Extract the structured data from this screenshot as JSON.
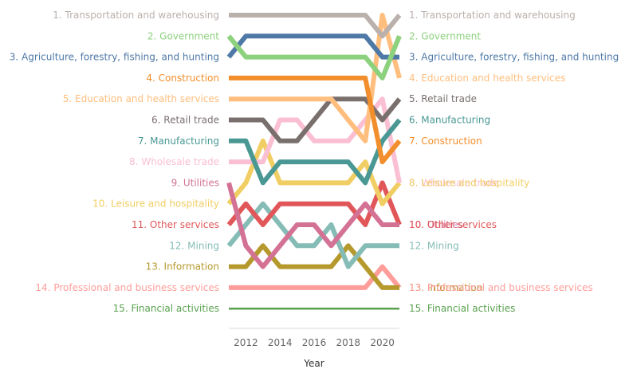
{
  "chart_data": {
    "type": "line",
    "title": "",
    "xlabel": "Year",
    "ylabel": "",
    "x": [
      2011,
      2012,
      2013,
      2014,
      2015,
      2016,
      2017,
      2018,
      2019,
      2020,
      2021
    ],
    "xlim": [
      2011,
      2021
    ],
    "ylim": [
      1,
      15
    ],
    "y_reversed": true,
    "x_ticks": [
      "2012",
      "2014",
      "2016",
      "2018",
      "2020"
    ],
    "grid": false,
    "legend": "none",
    "series": [
      {
        "name": "Transportation and warehousing",
        "color": "#bab0ac",
        "start_label": "1. Transportation and warehousing",
        "end_label": "1. Transportation and warehousing",
        "values": [
          1,
          1,
          1,
          1,
          1,
          1,
          1,
          1,
          1,
          2,
          1
        ]
      },
      {
        "name": "Government",
        "color": "#8cd17d",
        "start_label": "2. Government",
        "end_label": "2. Government",
        "values": [
          2,
          3,
          3,
          3,
          3,
          3,
          3,
          3,
          3,
          4,
          2
        ]
      },
      {
        "name": "Agriculture, forestry, fishing, and hunting",
        "color": "#4e79a7",
        "start_label": "3. Agriculture, forestry, fishing, and hunting",
        "end_label": "3. Agriculture, forestry, fishing, and hunting",
        "values": [
          3,
          2,
          2,
          2,
          2,
          2,
          2,
          2,
          2,
          3,
          3
        ]
      },
      {
        "name": "Construction",
        "color": "#f28e2b",
        "start_label": "4. Construction",
        "end_label": "7. Construction",
        "values": [
          4,
          4,
          4,
          4,
          4,
          4,
          4,
          4,
          4,
          8,
          7
        ]
      },
      {
        "name": "Education and health services",
        "color": "#ffbe7d",
        "start_label": "5. Education and health services",
        "end_label": "4. Education and health services",
        "values": [
          5,
          5,
          5,
          5,
          5,
          5,
          5,
          6,
          7,
          1,
          4
        ]
      },
      {
        "name": "Retail trade",
        "color": "#79706e",
        "start_label": "6. Retail trade",
        "end_label": "5. Retail trade",
        "values": [
          6,
          6,
          6,
          7,
          7,
          6,
          5,
          5,
          5,
          6,
          5
        ]
      },
      {
        "name": "Manufacturing",
        "color": "#499894",
        "start_label": "7. Manufacturing",
        "end_label": "6. Manufacturing",
        "values": [
          7,
          7,
          9,
          8,
          8,
          8,
          8,
          8,
          9,
          7,
          6
        ]
      },
      {
        "name": "Wholesale trade",
        "color": "#fabfd2",
        "start_label": "8. Wholesale trade",
        "end_label": "8. Wholesale trade",
        "values": [
          8,
          8,
          8,
          6,
          6,
          7,
          7,
          7,
          6,
          5,
          9
        ]
      },
      {
        "name": "Utilities",
        "color": "#d37295",
        "start_label": "9. Utilities",
        "end_label": "10. Utilities",
        "values": [
          9,
          12,
          13,
          12,
          11,
          11,
          12,
          11,
          10,
          11,
          11
        ]
      },
      {
        "name": "Leisure and hospitality",
        "color": "#f1ce63",
        "start_label": "10. Leisure and hospitality",
        "end_label": "8. Leisure and hospitality",
        "values": [
          10,
          9,
          7,
          9,
          9,
          9,
          9,
          9,
          8,
          10,
          9
        ]
      },
      {
        "name": "Other services",
        "color": "#e15759",
        "start_label": "11. Other services",
        "end_label": "10. Other services",
        "values": [
          11,
          10,
          11,
          10,
          10,
          10,
          10,
          10,
          11,
          9,
          11
        ]
      },
      {
        "name": "Mining",
        "color": "#86bcb6",
        "start_label": "12. Mining",
        "end_label": "12. Mining",
        "values": [
          12,
          11,
          10,
          11,
          12,
          12,
          11,
          13,
          12,
          12,
          12
        ]
      },
      {
        "name": "Information",
        "color": "#b6992d",
        "start_label": "13. Information",
        "end_label": "13. Information",
        "values": [
          13,
          13,
          12,
          13,
          13,
          13,
          13,
          12,
          13,
          14,
          14
        ]
      },
      {
        "name": "Professional and business services",
        "color": "#ff9d9a",
        "start_label": "14. Professional and business services",
        "end_label": "13. Professional and business services",
        "values": [
          14,
          14,
          14,
          14,
          14,
          14,
          14,
          14,
          14,
          13,
          14
        ]
      },
      {
        "name": "Financial activities",
        "color": "#59a14f",
        "start_label": "15. Financial activities",
        "end_label": "15. Financial activities",
        "values": [
          15,
          15,
          15,
          15,
          15,
          15,
          15,
          15,
          15,
          15,
          15
        ]
      }
    ]
  }
}
